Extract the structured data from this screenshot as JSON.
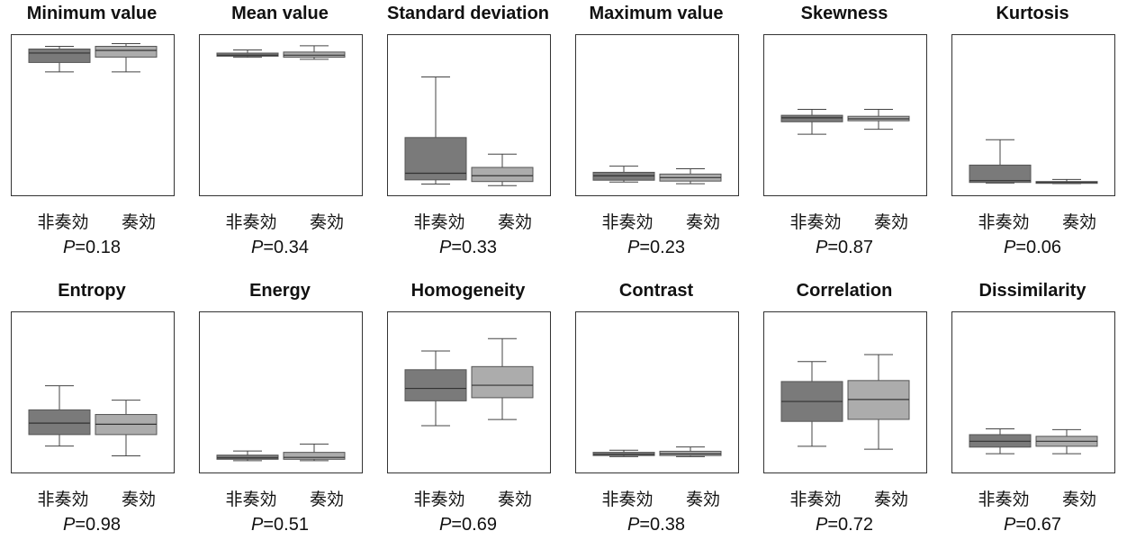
{
  "group_labels": [
    "非奏効",
    "奏効"
  ],
  "p_prefix": "P",
  "colors": {
    "non_responder": "#7a7a7a",
    "responder": "#acacac",
    "frame": "#333333",
    "points": "#555555"
  },
  "chart_data": [
    {
      "type": "box",
      "title": "Minimum value",
      "p_value": "=0.18",
      "ylim": [
        -1050,
        60
      ],
      "boxes": [
        {
          "q1": -110,
          "median": -40,
          "q3": -10,
          "whisker_low": -180,
          "whisker_high": 10
        },
        {
          "q1": -70,
          "median": -20,
          "q3": 10,
          "whisker_low": -180,
          "whisker_high": 30
        }
      ]
    },
    {
      "type": "box",
      "title": "Mean value",
      "p_value": "=0.34",
      "ylim": [
        -600,
        120
      ],
      "boxes": [
        {
          "q1": 40,
          "median": 45,
          "q3": 55,
          "whisker_low": 35,
          "whisker_high": 70
        },
        {
          "q1": 35,
          "median": 45,
          "q3": 60,
          "whisker_low": 25,
          "whisker_high": 90
        }
      ]
    },
    {
      "type": "box",
      "title": "Standard deviation",
      "p_value": "=0.33",
      "ylim": [
        0,
        1800
      ],
      "boxes": [
        {
          "q1": 110,
          "median": 190,
          "q3": 620,
          "whisker_low": 60,
          "whisker_high": 1350
        },
        {
          "q1": 90,
          "median": 160,
          "q3": 260,
          "whisker_low": 40,
          "whisker_high": 420
        }
      ]
    },
    {
      "type": "box",
      "title": "Maximum value",
      "p_value": "=0.23",
      "ylim": [
        0,
        1700
      ],
      "boxes": [
        {
          "q1": 100,
          "median": 150,
          "q3": 190,
          "whisker_low": 80,
          "whisker_high": 260
        },
        {
          "q1": 90,
          "median": 130,
          "q3": 170,
          "whisker_low": 60,
          "whisker_high": 230
        }
      ]
    },
    {
      "type": "box",
      "title": "Skewness",
      "p_value": "=0.87",
      "ylim": [
        -14,
        16
      ],
      "boxes": [
        {
          "q1": -0.5,
          "median": 0.3,
          "q3": 0.8,
          "whisker_low": -3,
          "whisker_high": 2
        },
        {
          "q1": -0.3,
          "median": 0.1,
          "q3": 0.6,
          "whisker_low": -2,
          "whisker_high": 2
        }
      ]
    },
    {
      "type": "box",
      "title": "Kurtosis",
      "p_value": "=0.06",
      "ylim": [
        -20,
        480
      ],
      "boxes": [
        {
          "q1": 2,
          "median": 8,
          "q3": 60,
          "whisker_low": 0,
          "whisker_high": 145
        },
        {
          "q1": 0,
          "median": 2,
          "q3": 5,
          "whisker_low": -2,
          "whisker_high": 12
        }
      ]
    },
    {
      "type": "box",
      "title": "Entropy",
      "p_value": "=0.98",
      "ylim": [
        0.9,
        3.5
      ],
      "boxes": [
        {
          "q1": 1.45,
          "median": 1.65,
          "q3": 1.88,
          "whisker_low": 1.25,
          "whisker_high": 2.3
        },
        {
          "q1": 1.45,
          "median": 1.63,
          "q3": 1.8,
          "whisker_low": 1.08,
          "whisker_high": 2.05
        }
      ]
    },
    {
      "type": "box",
      "title": "Energy",
      "p_value": "=0.51",
      "ylim": [
        -0.2,
        5.2
      ],
      "boxes": [
        {
          "q1": 0.05,
          "median": 0.1,
          "q3": 0.2,
          "whisker_low": 0.0,
          "whisker_high": 0.35
        },
        {
          "q1": 0.05,
          "median": 0.12,
          "q3": 0.3,
          "whisker_low": 0.0,
          "whisker_high": 0.6
        }
      ]
    },
    {
      "type": "box",
      "title": "Homogeneity",
      "p_value": "=0.69",
      "ylim": [
        0.25,
        0.73
      ],
      "boxes": [
        {
          "q1": 0.46,
          "median": 0.5,
          "q3": 0.56,
          "whisker_low": 0.38,
          "whisker_high": 0.62
        },
        {
          "q1": 0.47,
          "median": 0.51,
          "q3": 0.57,
          "whisker_low": 0.4,
          "whisker_high": 0.66
        }
      ]
    },
    {
      "type": "box",
      "title": "Contrast",
      "p_value": "=0.38",
      "ylim": [
        0.05,
        0.75
      ],
      "boxes": [
        {
          "q1": 0.1,
          "median": 0.105,
          "q3": 0.115,
          "whisker_low": 0.095,
          "whisker_high": 0.125
        },
        {
          "q1": 0.1,
          "median": 0.108,
          "q3": 0.12,
          "whisker_low": 0.095,
          "whisker_high": 0.14
        }
      ]
    },
    {
      "type": "box",
      "title": "Correlation",
      "p_value": "=0.72",
      "ylim": [
        -0.1,
        1.4
      ],
      "boxes": [
        {
          "q1": 0.35,
          "median": 0.55,
          "q3": 0.75,
          "whisker_low": 0.1,
          "whisker_high": 0.95
        },
        {
          "q1": 0.37,
          "median": 0.57,
          "q3": 0.76,
          "whisker_low": 0.07,
          "whisker_high": 1.02
        }
      ]
    },
    {
      "type": "box",
      "title": "Dissimilarity",
      "p_value": "=0.67",
      "ylim": [
        0.6,
        2.4
      ],
      "boxes": [
        {
          "q1": 0.83,
          "median": 0.9,
          "q3": 0.98,
          "whisker_low": 0.75,
          "whisker_high": 1.05
        },
        {
          "q1": 0.84,
          "median": 0.9,
          "q3": 0.96,
          "whisker_low": 0.75,
          "whisker_high": 1.04
        }
      ]
    }
  ]
}
